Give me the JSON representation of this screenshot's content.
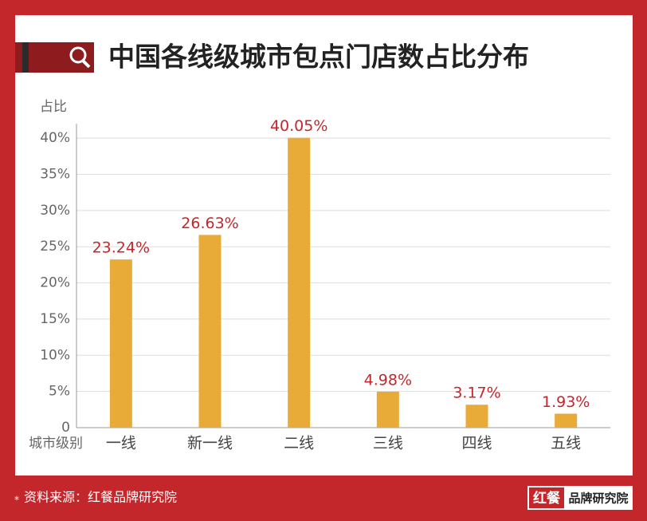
{
  "chart_data": {
    "type": "bar",
    "title": "中国各线级城市包点门店数占比分布",
    "y_label": "占比",
    "x_label": "城市级别",
    "categories": [
      "一线",
      "新一线",
      "二线",
      "三线",
      "四线",
      "五线"
    ],
    "values": [
      23.24,
      26.63,
      40.05,
      4.98,
      3.17,
      1.93
    ],
    "value_labels": [
      "23.24%",
      "26.63%",
      "40.05%",
      "4.98%",
      "3.17%",
      "1.93%"
    ],
    "color": "#e8ab38",
    "ylim": [
      0,
      42
    ],
    "yticks": [
      0,
      {
        "value": 5,
        "label": "5%"
      },
      {
        "value": 10,
        "label": "10%"
      },
      {
        "value": 15,
        "label": "15%"
      },
      {
        "value": 20,
        "label": "20%"
      },
      {
        "value": 25,
        "label": "25%"
      },
      {
        "value": 30,
        "label": "30%"
      },
      {
        "value": 35,
        "label": "35%"
      },
      {
        "value": 40,
        "label": "40%"
      }
    ],
    "grid": true
  },
  "footer": {
    "marker": "*",
    "source": "资料来源：红餐品牌研究院"
  },
  "logo": {
    "mark": "红餐",
    "name": "品牌研究院"
  }
}
